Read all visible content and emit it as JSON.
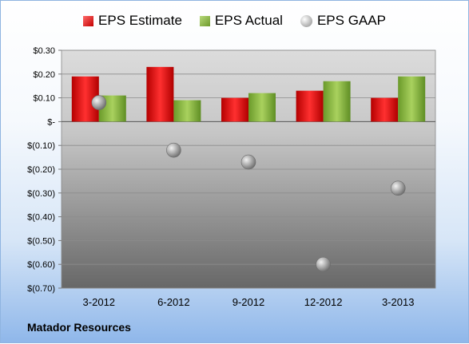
{
  "chart_data": {
    "type": "bar",
    "categories": [
      "3-2012",
      "6-2012",
      "9-2012",
      "12-2012",
      "3-2013"
    ],
    "series": [
      {
        "name": "EPS Estimate",
        "kind": "bar",
        "color": "#d81e1e",
        "values": [
          0.19,
          0.23,
          0.1,
          0.13,
          0.1
        ]
      },
      {
        "name": "EPS Actual",
        "kind": "bar",
        "color": "#8ab34a",
        "values": [
          0.11,
          0.09,
          0.12,
          0.17,
          0.19
        ]
      },
      {
        "name": "EPS GAAP",
        "kind": "scatter",
        "color": "#a6a6a6",
        "values": [
          0.08,
          -0.12,
          -0.17,
          -0.6,
          -0.28
        ]
      }
    ],
    "ylim": [
      -0.7,
      0.3
    ],
    "yticks": [
      0.3,
      0.2,
      0.1,
      0,
      -0.1,
      -0.2,
      -0.3,
      -0.4,
      -0.5,
      -0.6,
      -0.7
    ],
    "ytick_labels": [
      "$0.30",
      "$0.20",
      "$0.10",
      "$-",
      "$(0.10)",
      "$(0.20)",
      "$(0.30)",
      "$(0.40)",
      "$(0.50)",
      "$(0.60)",
      "$(0.70)"
    ],
    "grid": true,
    "legend_position": "top"
  },
  "legend": {
    "estimate": "EPS Estimate",
    "actual": "EPS Actual",
    "gaap": "EPS GAAP"
  },
  "footer": {
    "company": "Matador Resources"
  }
}
